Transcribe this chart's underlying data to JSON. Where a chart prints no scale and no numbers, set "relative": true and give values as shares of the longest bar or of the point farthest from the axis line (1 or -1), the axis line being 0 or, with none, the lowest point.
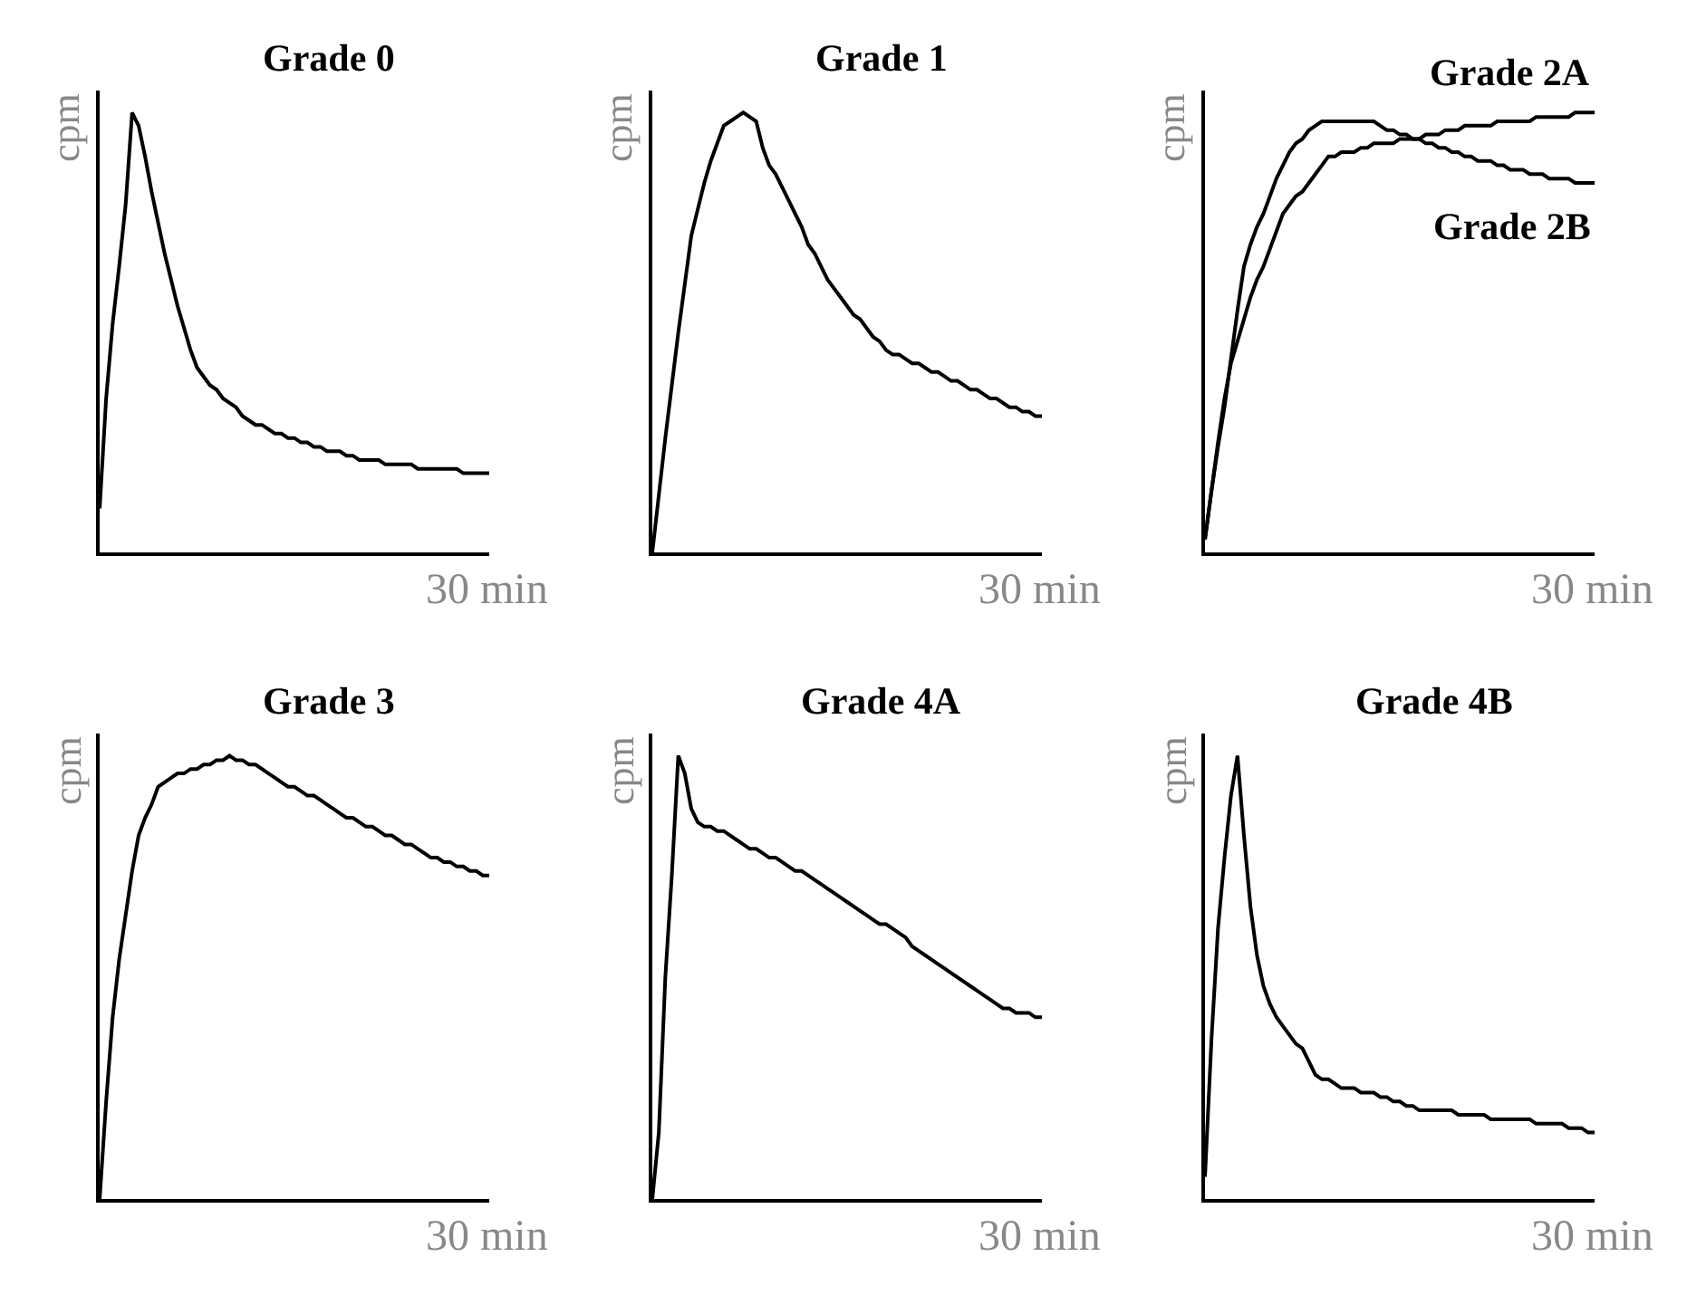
{
  "chart_data": [
    {
      "type": "line",
      "title": "Grade 0",
      "ylabel": "cpm",
      "relative": true,
      "annotations": [
        "30 min"
      ],
      "categories": [
        null,
        null,
        null,
        null,
        null,
        null,
        null,
        null,
        null,
        null,
        null,
        null,
        null,
        null,
        null,
        null,
        null,
        null,
        null,
        null,
        null,
        null,
        null,
        null,
        null,
        null,
        null,
        null,
        null,
        null,
        null,
        null,
        null,
        null,
        null,
        null,
        null,
        null,
        null,
        null,
        null,
        null,
        null,
        null,
        null,
        null,
        null,
        null,
        null,
        null,
        null,
        null,
        null,
        null,
        null,
        null,
        null,
        null,
        null,
        null,
        null
      ],
      "series": [
        {
          "color": "#000000",
          "values": [
            0.1,
            0.35,
            0.52,
            0.65,
            0.79,
            1.0,
            0.97,
            0.9,
            0.82,
            0.75,
            0.68,
            0.62,
            0.56,
            0.51,
            0.46,
            0.42,
            0.4,
            0.38,
            0.37,
            0.35,
            0.34,
            0.33,
            0.31,
            0.3,
            0.29,
            0.29,
            0.28,
            0.27,
            0.27,
            0.26,
            0.26,
            0.25,
            0.25,
            0.24,
            0.24,
            0.23,
            0.23,
            0.23,
            0.22,
            0.22,
            0.21,
            0.21,
            0.21,
            0.21,
            0.2,
            0.2,
            0.2,
            0.2,
            0.2,
            0.19,
            0.19,
            0.19,
            0.19,
            0.19,
            0.19,
            0.19,
            0.18,
            0.18,
            0.18,
            0.18,
            0.18
          ]
        }
      ]
    },
    {
      "type": "line",
      "title": "Grade 1",
      "ylabel": "cpm",
      "relative": true,
      "annotations": [
        "30 min"
      ],
      "categories": [
        null,
        null,
        null,
        null,
        null,
        null,
        null,
        null,
        null,
        null,
        null,
        null,
        null,
        null,
        null,
        null,
        null,
        null,
        null,
        null,
        null,
        null,
        null,
        null,
        null,
        null,
        null,
        null,
        null,
        null,
        null,
        null,
        null,
        null,
        null,
        null,
        null,
        null,
        null,
        null,
        null,
        null,
        null,
        null,
        null,
        null,
        null,
        null,
        null,
        null,
        null,
        null,
        null,
        null,
        null,
        null,
        null,
        null,
        null,
        null,
        null
      ],
      "series": [
        {
          "color": "#000000",
          "values": [
            0.0,
            0.13,
            0.26,
            0.38,
            0.5,
            0.61,
            0.72,
            0.78,
            0.84,
            0.89,
            0.93,
            0.97,
            0.98,
            0.99,
            1.0,
            0.99,
            0.98,
            0.92,
            0.88,
            0.86,
            0.83,
            0.8,
            0.77,
            0.74,
            0.7,
            0.68,
            0.65,
            0.62,
            0.6,
            0.58,
            0.56,
            0.54,
            0.53,
            0.51,
            0.49,
            0.48,
            0.46,
            0.45,
            0.45,
            0.44,
            0.43,
            0.43,
            0.42,
            0.41,
            0.41,
            0.4,
            0.39,
            0.39,
            0.38,
            0.37,
            0.37,
            0.36,
            0.35,
            0.35,
            0.34,
            0.33,
            0.33,
            0.32,
            0.32,
            0.31,
            0.31
          ]
        }
      ]
    },
    {
      "type": "line",
      "ylabel": "cpm",
      "relative": true,
      "annotations": [
        "30 min"
      ],
      "categories": [
        null,
        null,
        null,
        null,
        null,
        null,
        null,
        null,
        null,
        null,
        null,
        null,
        null,
        null,
        null,
        null,
        null,
        null,
        null,
        null,
        null,
        null,
        null,
        null,
        null,
        null,
        null,
        null,
        null,
        null,
        null,
        null,
        null,
        null,
        null,
        null,
        null,
        null,
        null,
        null,
        null,
        null,
        null,
        null,
        null,
        null,
        null,
        null,
        null,
        null,
        null,
        null,
        null,
        null,
        null,
        null,
        null,
        null,
        null,
        null,
        null
      ],
      "series": [
        {
          "name": "Grade 2A",
          "color": "#000000",
          "values": [
            0.03,
            0.14,
            0.25,
            0.35,
            0.43,
            0.48,
            0.53,
            0.58,
            0.62,
            0.65,
            0.69,
            0.73,
            0.77,
            0.79,
            0.81,
            0.82,
            0.84,
            0.86,
            0.88,
            0.9,
            0.9,
            0.91,
            0.91,
            0.91,
            0.92,
            0.92,
            0.93,
            0.93,
            0.93,
            0.93,
            0.94,
            0.94,
            0.94,
            0.94,
            0.95,
            0.95,
            0.95,
            0.96,
            0.96,
            0.96,
            0.97,
            0.97,
            0.97,
            0.97,
            0.97,
            0.98,
            0.98,
            0.98,
            0.98,
            0.98,
            0.98,
            0.99,
            0.99,
            0.99,
            0.99,
            0.99,
            0.99,
            1.0,
            1.0,
            1.0,
            1.0
          ]
        },
        {
          "name": "Grade 2B",
          "color": "#000000",
          "values": [
            0.03,
            0.14,
            0.24,
            0.33,
            0.44,
            0.55,
            0.65,
            0.7,
            0.74,
            0.77,
            0.81,
            0.85,
            0.88,
            0.91,
            0.93,
            0.94,
            0.96,
            0.97,
            0.98,
            0.98,
            0.98,
            0.98,
            0.98,
            0.98,
            0.98,
            0.98,
            0.98,
            0.97,
            0.96,
            0.96,
            0.95,
            0.95,
            0.94,
            0.94,
            0.93,
            0.93,
            0.92,
            0.92,
            0.91,
            0.91,
            0.9,
            0.9,
            0.89,
            0.89,
            0.89,
            0.88,
            0.88,
            0.87,
            0.87,
            0.87,
            0.86,
            0.86,
            0.86,
            0.85,
            0.85,
            0.85,
            0.85,
            0.84,
            0.84,
            0.84,
            0.84
          ]
        }
      ]
    },
    {
      "type": "line",
      "title": "Grade 3",
      "ylabel": "cpm",
      "relative": true,
      "annotations": [
        "30 min"
      ],
      "categories": [
        null,
        null,
        null,
        null,
        null,
        null,
        null,
        null,
        null,
        null,
        null,
        null,
        null,
        null,
        null,
        null,
        null,
        null,
        null,
        null,
        null,
        null,
        null,
        null,
        null,
        null,
        null,
        null,
        null,
        null,
        null,
        null,
        null,
        null,
        null,
        null,
        null,
        null,
        null,
        null,
        null,
        null,
        null,
        null,
        null,
        null,
        null,
        null,
        null,
        null,
        null,
        null,
        null,
        null,
        null,
        null,
        null,
        null,
        null,
        null,
        null
      ],
      "series": [
        {
          "color": "#000000",
          "values": [
            0.0,
            0.22,
            0.41,
            0.54,
            0.64,
            0.74,
            0.82,
            0.86,
            0.89,
            0.93,
            0.94,
            0.95,
            0.96,
            0.96,
            0.97,
            0.97,
            0.98,
            0.98,
            0.99,
            0.99,
            1.0,
            0.99,
            0.99,
            0.98,
            0.98,
            0.97,
            0.96,
            0.95,
            0.94,
            0.93,
            0.93,
            0.92,
            0.91,
            0.91,
            0.9,
            0.89,
            0.88,
            0.87,
            0.86,
            0.86,
            0.85,
            0.84,
            0.84,
            0.83,
            0.82,
            0.82,
            0.81,
            0.8,
            0.8,
            0.79,
            0.78,
            0.77,
            0.77,
            0.76,
            0.76,
            0.75,
            0.75,
            0.74,
            0.74,
            0.73,
            0.73
          ]
        }
      ]
    },
    {
      "type": "line",
      "title": "Grade 4A",
      "ylabel": "cpm",
      "relative": true,
      "annotations": [
        "30 min"
      ],
      "categories": [
        null,
        null,
        null,
        null,
        null,
        null,
        null,
        null,
        null,
        null,
        null,
        null,
        null,
        null,
        null,
        null,
        null,
        null,
        null,
        null,
        null,
        null,
        null,
        null,
        null,
        null,
        null,
        null,
        null,
        null,
        null,
        null,
        null,
        null,
        null,
        null,
        null,
        null,
        null,
        null,
        null,
        null,
        null,
        null,
        null,
        null,
        null,
        null,
        null,
        null,
        null,
        null,
        null,
        null,
        null,
        null,
        null,
        null,
        null,
        null,
        null
      ],
      "series": [
        {
          "color": "#000000",
          "values": [
            0.0,
            0.15,
            0.5,
            0.73,
            1.0,
            0.96,
            0.88,
            0.85,
            0.84,
            0.84,
            0.83,
            0.83,
            0.82,
            0.81,
            0.8,
            0.79,
            0.79,
            0.78,
            0.77,
            0.77,
            0.76,
            0.75,
            0.74,
            0.74,
            0.73,
            0.72,
            0.71,
            0.7,
            0.69,
            0.68,
            0.67,
            0.66,
            0.65,
            0.64,
            0.63,
            0.62,
            0.62,
            0.61,
            0.6,
            0.59,
            0.57,
            0.56,
            0.55,
            0.54,
            0.53,
            0.52,
            0.51,
            0.5,
            0.49,
            0.48,
            0.47,
            0.46,
            0.45,
            0.44,
            0.43,
            0.43,
            0.42,
            0.42,
            0.42,
            0.41,
            0.41
          ]
        }
      ]
    },
    {
      "type": "line",
      "title": "Grade 4B",
      "ylabel": "cpm",
      "relative": true,
      "annotations": [
        "30 min"
      ],
      "categories": [
        null,
        null,
        null,
        null,
        null,
        null,
        null,
        null,
        null,
        null,
        null,
        null,
        null,
        null,
        null,
        null,
        null,
        null,
        null,
        null,
        null,
        null,
        null,
        null,
        null,
        null,
        null,
        null,
        null,
        null,
        null,
        null,
        null,
        null,
        null,
        null,
        null,
        null,
        null,
        null,
        null,
        null,
        null,
        null,
        null,
        null,
        null,
        null,
        null,
        null,
        null,
        null,
        null,
        null,
        null,
        null,
        null,
        null,
        null,
        null,
        null
      ],
      "series": [
        {
          "color": "#000000",
          "values": [
            0.05,
            0.36,
            0.61,
            0.77,
            0.91,
            1.0,
            0.82,
            0.66,
            0.55,
            0.48,
            0.44,
            0.41,
            0.39,
            0.37,
            0.35,
            0.34,
            0.31,
            0.28,
            0.27,
            0.27,
            0.26,
            0.25,
            0.25,
            0.25,
            0.24,
            0.24,
            0.24,
            0.23,
            0.23,
            0.22,
            0.22,
            0.21,
            0.21,
            0.2,
            0.2,
            0.2,
            0.2,
            0.2,
            0.2,
            0.19,
            0.19,
            0.19,
            0.19,
            0.19,
            0.18,
            0.18,
            0.18,
            0.18,
            0.18,
            0.18,
            0.18,
            0.17,
            0.17,
            0.17,
            0.17,
            0.17,
            0.16,
            0.16,
            0.16,
            0.15,
            0.15
          ]
        }
      ]
    }
  ]
}
